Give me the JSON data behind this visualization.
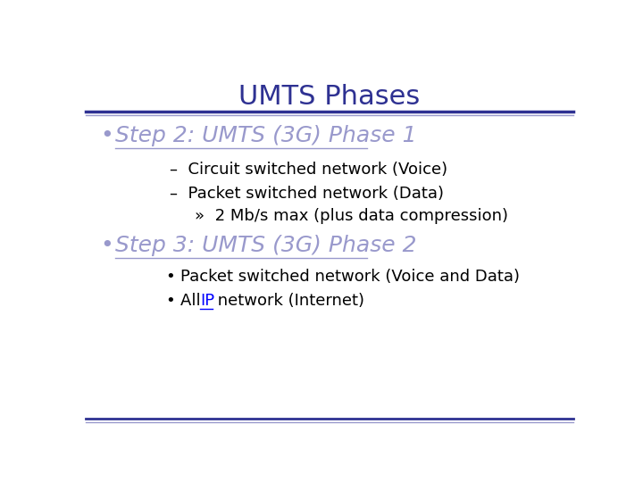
{
  "title": "UMTS Phases",
  "title_color": "#2E3192",
  "title_fontsize": 22,
  "bg_color": "#FFFFFF",
  "separator_color_top": "#2E3192",
  "separator_color_bottom": "#9999CC",
  "bullet1_text": "Step 2: UMTS (3G) Phase 1",
  "bullet1_color": "#9999CC",
  "bullet1_fontsize": 18,
  "sub1_1": "–  Circuit switched network (Voice)",
  "sub1_2": "–  Packet switched network (Data)",
  "sub1_3": "»  2 Mb/s max (plus data compression)",
  "sub_color": "#000000",
  "sub_fontsize": 13,
  "bullet2_text": "Step 3: UMTS (3G) Phase 2",
  "bullet2_color": "#9999CC",
  "bullet2_fontsize": 18,
  "sub2_1": "Packet switched network (Voice and Data)",
  "sub2_2_pre": "All ",
  "sub2_2_link": "IP",
  "sub2_2_post": " network (Internet)",
  "link_color": "#0000FF",
  "figwidth": 7.2,
  "figheight": 5.4
}
